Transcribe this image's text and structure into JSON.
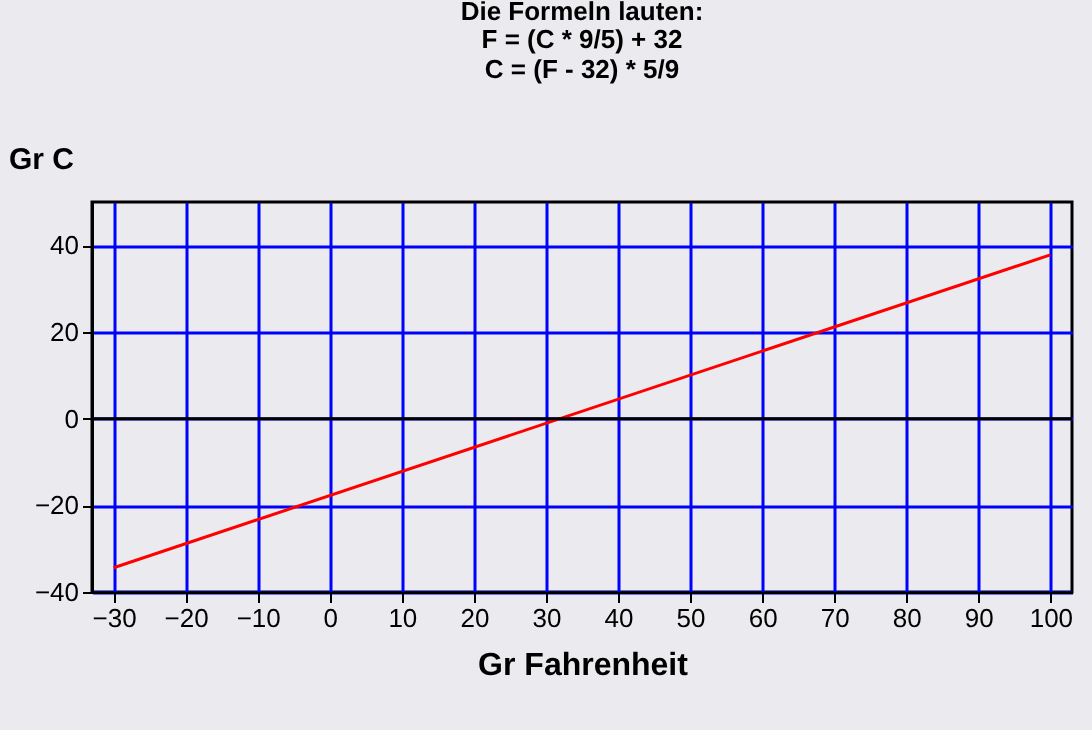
{
  "chart_data": {
    "type": "line",
    "title": "Die Formeln lauten:",
    "subtitle": "F = (C * 9/5) + 32\nC = (F - 32) * 5/9",
    "xlabel": "Gr Fahrenheit",
    "ylabel": "Gr C",
    "x": [
      -30,
      100
    ],
    "series": [
      {
        "color": "#ff0000",
        "values": [
          -34.4,
          37.8
        ]
      }
    ],
    "xlim": [
      -33,
      103
    ],
    "xticks": [
      -30,
      -20,
      -10,
      0,
      10,
      20,
      30,
      40,
      50,
      60,
      70,
      80,
      90,
      100
    ],
    "ylim": [
      -40,
      50
    ],
    "yticks": [
      -40,
      -20,
      0,
      20,
      40
    ],
    "grid": true,
    "legend": false,
    "marker": "none",
    "line_style": "solid",
    "ref_lines": [
      {
        "axis": "y",
        "value": 0,
        "color": "#000000"
      }
    ]
  }
}
